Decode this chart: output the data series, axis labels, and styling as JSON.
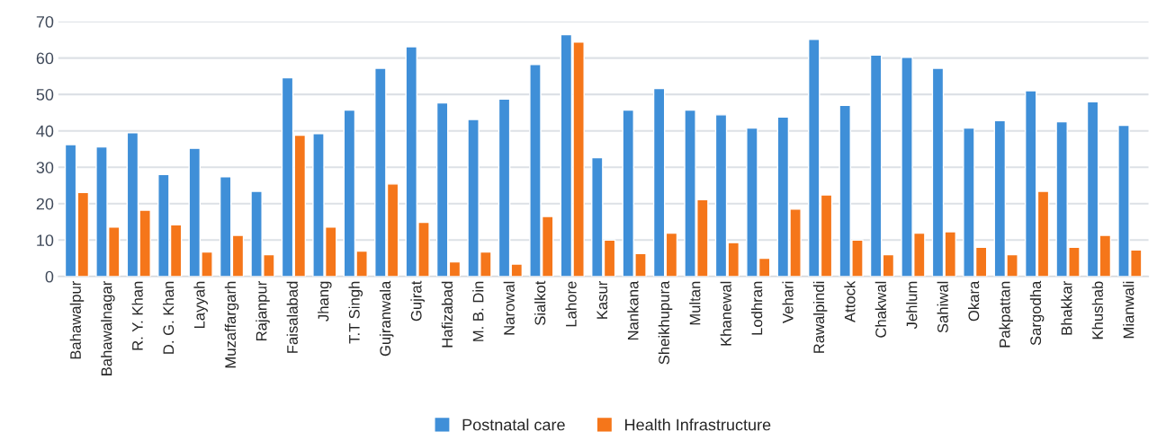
{
  "chart_data": {
    "type": "bar",
    "categories": [
      "Bahawalpur",
      "Bahawalnagar",
      "R. Y. Khan",
      "D. G. Khan",
      "Layyah",
      "Muzaffargarh",
      "Rajanpur",
      "Faisalabad",
      "Jhang",
      "T.T Singh",
      "Gujranwala",
      "Gujrat",
      "Hafizabad",
      "M. B. Din",
      "Narowal",
      "Sialkot",
      "Lahore",
      "Kasur",
      "Nankana",
      "Sheikhupura",
      "Multan",
      "Khanewal",
      "Lodhran",
      "Vehari",
      "Rawalpindi",
      "Attock",
      "Chakwal",
      "Jehlum",
      "Sahiwal",
      "Okara",
      "Pakpattan",
      "Sargodha",
      "Bhakkar",
      "Khushab",
      "Mianwali"
    ],
    "series": [
      {
        "name": "Postnatal care",
        "color": "#3f8fd8",
        "values": [
          36.2,
          35.6,
          39.5,
          28,
          35.2,
          27.4,
          23.4,
          54.6,
          39.2,
          45.7,
          57.2,
          63.1,
          47.7,
          43.1,
          48.7,
          58.2,
          66.4,
          32.6,
          45.7,
          51.6,
          45.7,
          44.4,
          40.8,
          43.8,
          65.1,
          47.0,
          60.8,
          60.2,
          57.2,
          40.8,
          42.8,
          51.0,
          42.5,
          48.0,
          41.5
        ]
      },
      {
        "name": "Health Infrastructure",
        "color": "#f5761a",
        "values": [
          23.1,
          13.6,
          18.2,
          14.2,
          6.7,
          11.3,
          6.0,
          38.8,
          13.6,
          7.0,
          25.4,
          14.9,
          4.0,
          6.7,
          3.4,
          16.5,
          64.4,
          10.0,
          6.3,
          11.9,
          21.1,
          9.3,
          5.0,
          18.5,
          22.4,
          10.0,
          6.0,
          11.9,
          12.3,
          8.0,
          6.0,
          23.4,
          8.0,
          11.3,
          7.3
        ]
      }
    ],
    "ylim": [
      0,
      70
    ],
    "yticks": [
      0,
      10,
      20,
      30,
      40,
      50,
      60,
      70
    ],
    "grid": "y",
    "legend": "bottom"
  }
}
